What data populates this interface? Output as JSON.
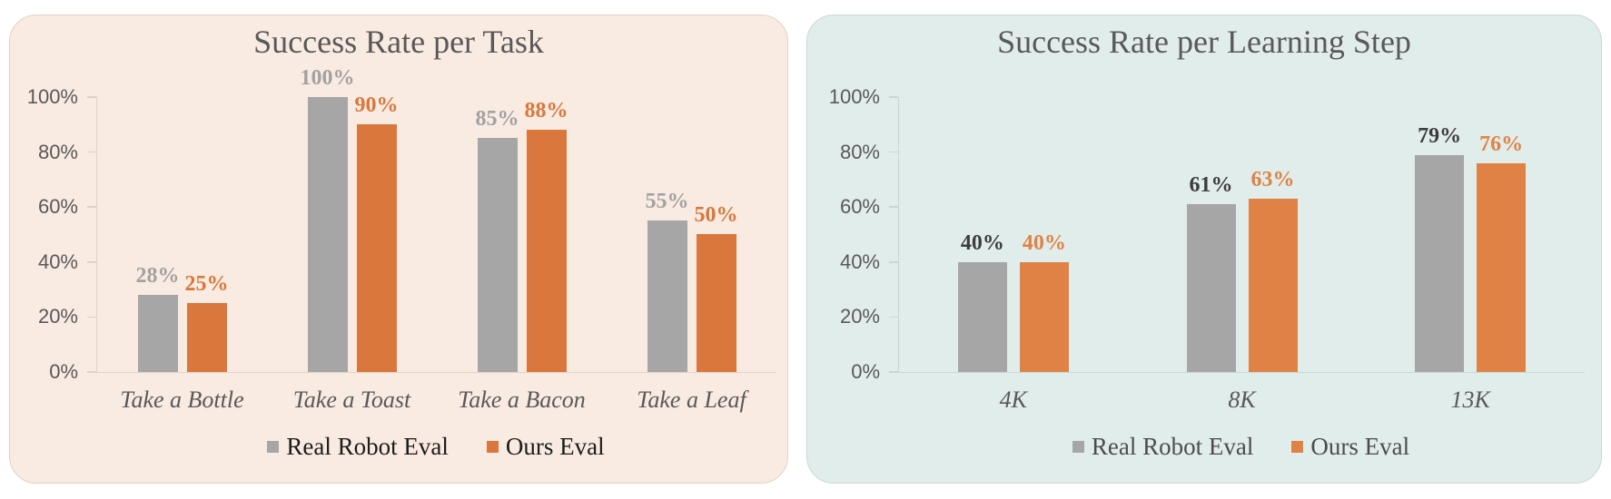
{
  "page": {
    "background": "#ffffff"
  },
  "chart_data": [
    {
      "type": "bar",
      "title": "Success Rate per Task",
      "categories": [
        "Take a Bottle",
        "Take a Toast",
        "Take a Bacon",
        "Take a Leaf"
      ],
      "series": [
        {
          "name": "Real Robot Eval",
          "values": [
            28,
            100,
            85,
            55
          ],
          "color": "#a6a6a6",
          "label_color": "#a2a2a2"
        },
        {
          "name": "Ours Eval",
          "values": [
            25,
            90,
            88,
            50
          ],
          "color": "#d9773c",
          "label_color": "#d9773c"
        }
      ],
      "value_suffix": "%",
      "y_ticks": [
        0,
        20,
        40,
        60,
        80,
        100
      ],
      "ylim": [
        0,
        100
      ],
      "grid": false,
      "legend_position": "bottom",
      "panel_bg": "#f9ebe1",
      "panel_border": "#ded2c8",
      "axis_color": "#ddd2c9",
      "text_color": "#595959",
      "legend_text_color": "#1c1c1c"
    },
    {
      "type": "bar",
      "title": "Success Rate per Learning Step",
      "categories": [
        "4K",
        "8K",
        "13K"
      ],
      "series": [
        {
          "name": "Real Robot Eval",
          "values": [
            40,
            61,
            79
          ],
          "color": "#a6a6a6",
          "label_color": "#3d3d3d"
        },
        {
          "name": "Ours Eval",
          "values": [
            40,
            63,
            76
          ],
          "color": "#e08245",
          "label_color": "#e08245"
        }
      ],
      "value_suffix": "%",
      "y_ticks": [
        0,
        20,
        40,
        60,
        80,
        100
      ],
      "ylim": [
        0,
        100
      ],
      "grid": false,
      "legend_position": "bottom",
      "panel_bg": "#e1edeb",
      "panel_border": "#ccd8d6",
      "axis_color": "#c9d6d4",
      "text_color": "#595959",
      "legend_text_color": "#4c4c4c"
    }
  ]
}
